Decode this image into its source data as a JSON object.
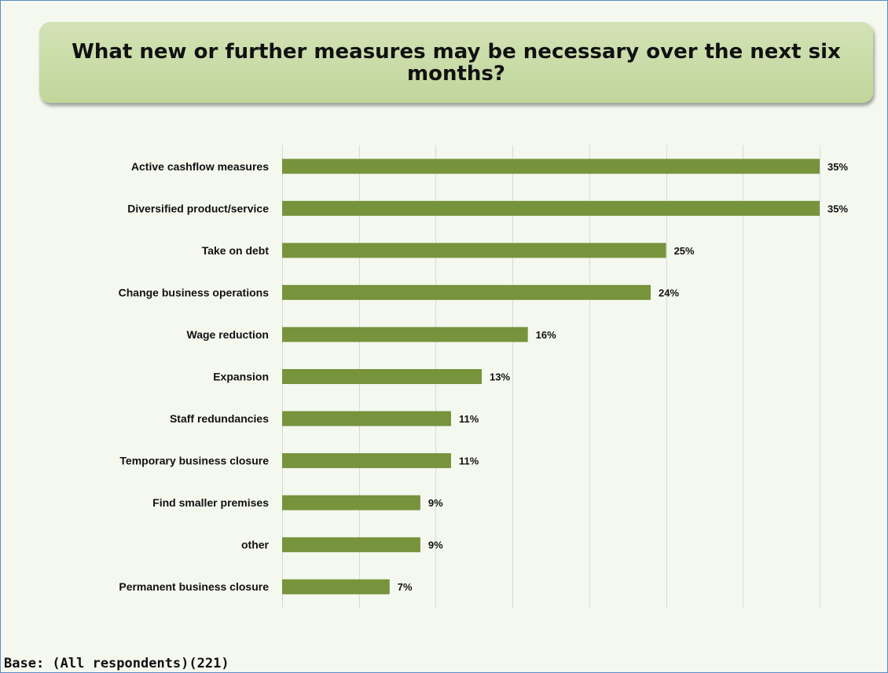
{
  "title": "What new or further measures may be necessary over the next six months?",
  "base_note": "Base: (All respondents)(221)",
  "colors": {
    "bar": "#77933c",
    "grid": "#d9d9d9",
    "title_bg": "#c4d79b",
    "frame_border": "#5b8ac7"
  },
  "chart_data": {
    "type": "bar",
    "orientation": "horizontal",
    "categories": [
      "Active cashflow measures",
      "Diversified product/service",
      "Take on debt",
      "Change business operations",
      "Wage reduction",
      "Expansion",
      "Staff redundancies",
      "Temporary business closure",
      "Find smaller premises",
      "other",
      "Permanent business closure"
    ],
    "values": [
      35,
      35,
      25,
      24,
      16,
      13,
      11,
      11,
      9,
      9,
      7
    ],
    "value_labels": [
      "35%",
      "35%",
      "25%",
      "24%",
      "16%",
      "13%",
      "11%",
      "11%",
      "9%",
      "9%",
      "7%"
    ],
    "xlim": [
      0,
      35
    ],
    "unit": "%",
    "grid": true,
    "legend": "none",
    "title": "What new or further measures may be necessary over the next six months?",
    "xlabel": "",
    "ylabel": ""
  }
}
